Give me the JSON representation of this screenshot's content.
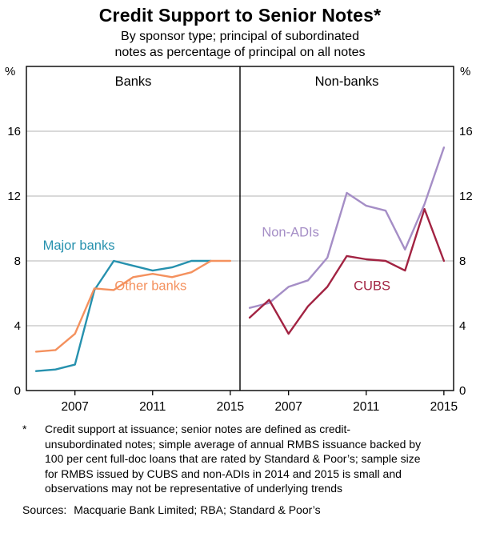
{
  "chart_data": {
    "type": "line",
    "title": "Credit Support to Senior Notes*",
    "subtitle": [
      "By sponsor type; principal of subordinated",
      "notes as percentage of principal on all notes"
    ],
    "unit": "%",
    "x_range": [
      2004.5,
      2015.5
    ],
    "ylim": [
      0,
      20
    ],
    "yticks": [
      0,
      4,
      8,
      12,
      16
    ],
    "xticks": [
      2007,
      2011,
      2015
    ],
    "grid": "horizontal",
    "panels": [
      {
        "title": "Banks",
        "series": [
          {
            "name": "Major banks",
            "color": "#2691AE",
            "x": [
              2005,
              2006,
              2007,
              2008,
              2009,
              2010,
              2011,
              2012,
              2013,
              2014
            ],
            "values": [
              1.2,
              1.3,
              1.6,
              6.2,
              8.0,
              7.7,
              7.4,
              7.6,
              8.0,
              8.0
            ],
            "label": {
              "text": "Major banks",
              "x": 2007.2,
              "y": 8.7
            }
          },
          {
            "name": "Other banks",
            "color": "#F4915E",
            "x": [
              2005,
              2006,
              2007,
              2008,
              2009,
              2010,
              2011,
              2012,
              2013,
              2014,
              2015
            ],
            "values": [
              2.4,
              2.5,
              3.5,
              6.3,
              6.2,
              7.0,
              7.2,
              7.0,
              7.3,
              8.0,
              8.0
            ],
            "label": {
              "text": "Other banks",
              "x": 2010.9,
              "y": 6.2
            }
          }
        ]
      },
      {
        "title": "Non-banks",
        "series": [
          {
            "name": "Non-ADIs",
            "color": "#A58EC6",
            "x": [
              2005,
              2006,
              2007,
              2008,
              2009,
              2010,
              2011,
              2012,
              2013,
              2014,
              2015
            ],
            "values": [
              5.1,
              5.4,
              6.4,
              6.8,
              8.2,
              12.2,
              11.4,
              11.1,
              8.7,
              11.5,
              15.0
            ],
            "label": {
              "text": "Non-ADIs",
              "x": 2007.1,
              "y": 9.5
            }
          },
          {
            "name": "CUBS",
            "color": "#A22342",
            "x": [
              2005,
              2006,
              2007,
              2008,
              2009,
              2010,
              2011,
              2012,
              2013,
              2014,
              2015
            ],
            "values": [
              4.5,
              5.6,
              3.5,
              5.2,
              6.4,
              8.3,
              8.1,
              8.0,
              7.4,
              11.2,
              8.0
            ],
            "label": {
              "text": "CUBS",
              "x": 2011.3,
              "y": 6.2
            }
          }
        ]
      }
    ]
  },
  "footnote": {
    "marker": "*",
    "text": "Credit support at issuance; senior notes are defined as credit-unsubordinated notes; simple average of annual RMBS issuance backed by 100 per cent full-doc loans that are rated by Standard & Poor’s; sample size for RMBS issued by CUBS and non-ADIs in 2014 and 2015 is small and observations may not be representative of underlying trends"
  },
  "sources": {
    "label": "Sources:",
    "text": "Macquarie Bank Limited; RBA; Standard & Poor’s"
  }
}
